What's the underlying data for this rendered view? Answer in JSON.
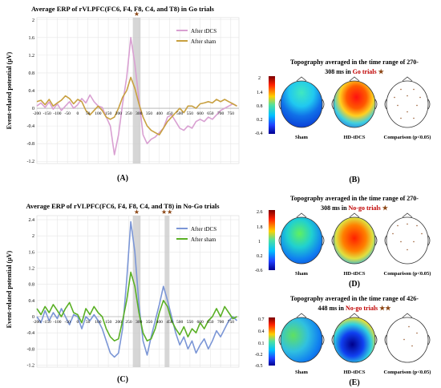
{
  "panels": {
    "A": {
      "letter": "(A)",
      "chart_data": {
        "type": "line",
        "title": "Average ERP of rVLPFC(FC6, F4, F8, C4, and T8) in Go trials",
        "ylabel": "Event-related potential (μV)",
        "xlabel": "",
        "ylim": [
          -1.25,
          2.05
        ],
        "xlim": [
          -200,
          790
        ],
        "yticks": [
          "2",
          "1.6",
          "1.2",
          "0.8",
          "0.4",
          "0",
          "-0.4",
          "-0.8",
          "-1.2"
        ],
        "xticks": [
          "-200",
          "-150",
          "-100",
          "-50",
          "0",
          "50",
          "100",
          "150",
          "200",
          "250",
          "300",
          "350",
          "400",
          "450",
          "500",
          "550",
          "600",
          "650",
          "700",
          "750"
        ],
        "grid": true,
        "legend": "top-right",
        "highlight_windows": [
          [
            270,
            308
          ]
        ],
        "markers": [
          "★"
        ],
        "series": [
          {
            "name": "After tDCS",
            "color": "#d9a0d2",
            "x": [
              -200,
              -180,
              -160,
              -140,
              -120,
              -100,
              -80,
              -60,
              -40,
              -20,
              0,
              20,
              40,
              60,
              80,
              100,
              120,
              140,
              160,
              180,
              200,
              220,
              240,
              260,
              280,
              300,
              320,
              340,
              360,
              380,
              400,
              420,
              440,
              460,
              480,
              500,
              520,
              540,
              560,
              580,
              600,
              620,
              640,
              660,
              680,
              700,
              720,
              740,
              760,
              780
            ],
            "y": [
              0.05,
              0.12,
              0.02,
              0.14,
              -0.02,
              0.1,
              -0.05,
              0.05,
              0.15,
              0.0,
              0.08,
              0.22,
              0.12,
              0.3,
              0.15,
              0.05,
              0.02,
              -0.2,
              -0.4,
              -1.05,
              -0.6,
              0.1,
              0.7,
              1.6,
              1.0,
              0.2,
              -0.6,
              -0.8,
              -0.7,
              -0.65,
              -0.55,
              -0.45,
              -0.2,
              -0.15,
              -0.3,
              -0.45,
              -0.5,
              -0.4,
              -0.45,
              -0.3,
              -0.25,
              -0.3,
              -0.2,
              -0.25,
              -0.15,
              -0.05,
              0.0,
              0.05,
              0.1,
              0.05
            ]
          },
          {
            "name": "After sham",
            "color": "#c8a040",
            "x": [
              -200,
              -180,
              -160,
              -140,
              -120,
              -100,
              -80,
              -60,
              -40,
              -20,
              0,
              20,
              40,
              60,
              80,
              100,
              120,
              140,
              160,
              180,
              200,
              220,
              240,
              260,
              280,
              300,
              320,
              340,
              360,
              380,
              400,
              420,
              440,
              460,
              480,
              500,
              520,
              540,
              560,
              580,
              600,
              620,
              640,
              660,
              680,
              700,
              720,
              740,
              760,
              780
            ],
            "y": [
              0.15,
              0.18,
              0.08,
              0.2,
              0.05,
              0.12,
              0.18,
              0.28,
              0.22,
              0.1,
              0.2,
              0.15,
              -0.05,
              -0.15,
              -0.05,
              0.05,
              -0.05,
              -0.2,
              -0.25,
              -0.2,
              0.0,
              0.25,
              0.4,
              0.7,
              0.45,
              0.1,
              -0.2,
              -0.4,
              -0.5,
              -0.55,
              -0.6,
              -0.45,
              -0.3,
              -0.2,
              -0.1,
              0.0,
              -0.1,
              0.05,
              0.05,
              0.0,
              0.1,
              0.12,
              0.15,
              0.12,
              0.2,
              0.15,
              0.2,
              0.15,
              0.1,
              0.05
            ]
          }
        ]
      }
    },
    "C": {
      "letter": "(C)",
      "chart_data": {
        "type": "line",
        "title": "Average ERP of rVLPFC(FC6, F4, F8, C4, and T8) in No-Go trials",
        "ylabel": "Event-related potential (μV)",
        "xlabel": "",
        "ylim": [
          -1.25,
          2.5
        ],
        "xlim": [
          -200,
          790
        ],
        "yticks": [
          "2.4",
          "2",
          "1.6",
          "1.2",
          "0.8",
          "0.4",
          "0",
          "-0.4",
          "-0.8",
          "-1.2"
        ],
        "xticks": [
          "-200",
          "-150",
          "-100",
          "-50",
          "0",
          "50",
          "100",
          "150",
          "200",
          "250",
          "300",
          "350",
          "400",
          "450",
          "500",
          "550",
          "600",
          "650",
          "700",
          "750"
        ],
        "grid": true,
        "legend": "top-right",
        "highlight_windows": [
          [
            270,
            308
          ],
          [
            426,
            448
          ]
        ],
        "markers": [
          "★",
          "★★"
        ],
        "series": [
          {
            "name": "After tDCS",
            "color": "#7b96d6",
            "x": [
              -200,
              -180,
              -160,
              -140,
              -120,
              -100,
              -80,
              -60,
              -40,
              -20,
              0,
              20,
              40,
              60,
              80,
              100,
              120,
              140,
              160,
              180,
              200,
              220,
              240,
              260,
              280,
              300,
              320,
              340,
              360,
              380,
              400,
              420,
              440,
              460,
              480,
              500,
              520,
              540,
              560,
              580,
              600,
              620,
              640,
              660,
              680,
              700,
              720,
              740,
              760,
              780
            ],
            "y": [
              0.0,
              -0.15,
              0.15,
              -0.1,
              0.1,
              -0.05,
              0.2,
              0.0,
              -0.2,
              0.05,
              0.0,
              -0.3,
              0.0,
              -0.1,
              0.05,
              -0.1,
              -0.3,
              -0.6,
              -0.9,
              -1.0,
              -0.9,
              -0.3,
              0.9,
              2.35,
              1.6,
              0.3,
              -0.6,
              -0.95,
              -0.5,
              -0.1,
              0.3,
              0.75,
              0.4,
              0.0,
              -0.4,
              -0.7,
              -0.5,
              -0.8,
              -0.6,
              -0.9,
              -0.7,
              -0.55,
              -0.8,
              -0.6,
              -0.35,
              -0.5,
              -0.3,
              -0.1,
              0.0,
              -0.1
            ]
          },
          {
            "name": "After sham",
            "color": "#5ab025",
            "x": [
              -200,
              -180,
              -160,
              -140,
              -120,
              -100,
              -80,
              -60,
              -40,
              -20,
              0,
              20,
              40,
              60,
              80,
              100,
              120,
              140,
              160,
              180,
              200,
              220,
              240,
              260,
              280,
              300,
              320,
              340,
              360,
              380,
              400,
              420,
              440,
              460,
              480,
              500,
              520,
              540,
              560,
              580,
              600,
              620,
              640,
              660,
              680,
              700,
              720,
              740,
              760,
              780
            ],
            "y": [
              0.2,
              0.05,
              0.25,
              0.1,
              0.3,
              0.15,
              0.0,
              0.2,
              0.35,
              0.1,
              0.05,
              -0.15,
              0.2,
              0.05,
              0.25,
              0.1,
              0.0,
              -0.3,
              -0.5,
              -0.6,
              -0.55,
              -0.1,
              0.4,
              1.1,
              0.75,
              0.1,
              -0.4,
              -0.6,
              -0.55,
              -0.3,
              0.1,
              0.4,
              0.25,
              -0.1,
              -0.3,
              -0.45,
              -0.25,
              -0.5,
              -0.3,
              -0.4,
              -0.15,
              -0.3,
              -0.1,
              0.0,
              0.2,
              0.0,
              0.25,
              0.1,
              -0.05,
              0.0
            ]
          }
        ]
      }
    },
    "B": {
      "letter": "(B)",
      "title_line1": "Topography averaged in the time range of 270-",
      "title_prefix": "308 ms in ",
      "title_colored": "Go trials",
      "title_star": "★",
      "scale": [
        "2",
        "1.4",
        "0.8",
        "0.2",
        "-0.4"
      ],
      "labels": [
        "Sham",
        "HD-tDCS",
        "Comparison (p<0.05)"
      ]
    },
    "D": {
      "letter": "(D)",
      "title_line1": "Topography averaged in the time range of 270-",
      "title_prefix": "308 ms in ",
      "title_colored": "No-go trials",
      "title_star": "★",
      "scale": [
        "2.6",
        "1.8",
        "1",
        "0.2",
        "-0.6"
      ],
      "labels": [
        "Sham",
        "HD-tDCS",
        "Comparison (p<0.05)"
      ]
    },
    "E": {
      "letter": "(E)",
      "title_line1": "Topography averaged in the time range of 426-",
      "title_prefix": "448 ms in ",
      "title_colored": "No-go trials",
      "title_star": "★★",
      "scale": [
        "0.7",
        "0.4",
        "0.1",
        "-0.2",
        "-0.5"
      ],
      "labels": [
        "Sham",
        "HD-tDCS",
        "Comparison (p<0.05)"
      ]
    }
  },
  "colors": {
    "title_red": "#c00000",
    "star": "#8b4513",
    "highlight": "#c8c8c8",
    "grid": "#e6e6e6"
  }
}
